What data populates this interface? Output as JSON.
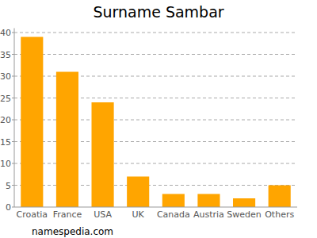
{
  "chart_data": {
    "type": "bar",
    "title": "Surname Sambar",
    "categories": [
      "Croatia",
      "France",
      "USA",
      "UK",
      "Canada",
      "Austria",
      "Sweden",
      "Others"
    ],
    "values": [
      39,
      31,
      24,
      7,
      3,
      3,
      2,
      5
    ],
    "color": "#ffa500",
    "ylim": [
      0,
      41
    ],
    "yticks": [
      0,
      5,
      10,
      15,
      20,
      25,
      30,
      35,
      40
    ],
    "grid": true,
    "annotations": [
      "namespedia.com"
    ]
  }
}
